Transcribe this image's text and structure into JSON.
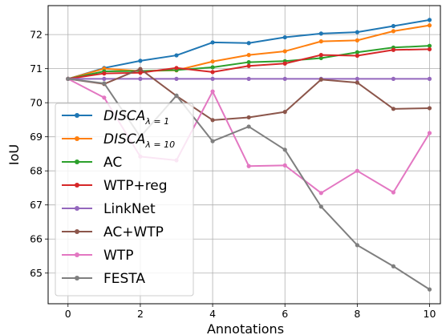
{
  "chart_data": {
    "type": "line",
    "xlabel": "Annotations",
    "ylabel": "IoU",
    "xlim": [
      -0.55,
      10.3
    ],
    "ylim": [
      64.1,
      72.85
    ],
    "xticks": [
      0,
      2,
      4,
      6,
      8,
      10
    ],
    "yticks": [
      65,
      66,
      67,
      68,
      69,
      70,
      71,
      72
    ],
    "grid": true,
    "legend_position": "center-left",
    "x": [
      0,
      1,
      2,
      3,
      4,
      5,
      6,
      7,
      8,
      9,
      10
    ],
    "series": [
      {
        "name": "DISCA",
        "subscript": "λ = 1",
        "color": "#1f77b4",
        "values": [
          70.7,
          71.02,
          71.23,
          71.39,
          71.77,
          71.75,
          71.92,
          72.03,
          72.07,
          72.25,
          72.43
        ]
      },
      {
        "name": "DISCA",
        "subscript": "λ = 10",
        "color": "#ff7f0e",
        "values": [
          70.7,
          71.0,
          70.93,
          70.95,
          71.21,
          71.4,
          71.51,
          71.8,
          71.83,
          72.1,
          72.27
        ]
      },
      {
        "name": "AC",
        "color": "#2ca02c",
        "values": [
          70.7,
          70.92,
          70.93,
          70.96,
          71.04,
          71.19,
          71.22,
          71.31,
          71.48,
          71.62,
          71.67
        ]
      },
      {
        "name": "WTP+reg",
        "color": "#d62728",
        "values": [
          70.7,
          70.86,
          70.88,
          71.02,
          70.9,
          71.08,
          71.15,
          71.4,
          71.38,
          71.55,
          71.57
        ]
      },
      {
        "name": "LinkNet",
        "color": "#9467bd",
        "values": [
          70.7,
          70.7,
          70.7,
          70.7,
          70.7,
          70.7,
          70.7,
          70.7,
          70.7,
          70.7,
          70.7
        ]
      },
      {
        "name": "AC+WTP",
        "color": "#8c564b",
        "values": [
          70.7,
          70.55,
          70.99,
          70.2,
          69.49,
          69.57,
          69.73,
          70.68,
          70.59,
          69.82,
          69.84
        ]
      },
      {
        "name": "WTP",
        "color": "#e377c2",
        "values": [
          70.7,
          70.15,
          68.42,
          68.31,
          70.33,
          68.14,
          68.16,
          67.35,
          68.0,
          67.37,
          69.11
        ]
      },
      {
        "name": "FESTA",
        "color": "#7f7f7f",
        "values": [
          70.7,
          70.57,
          69.0,
          70.21,
          68.87,
          69.3,
          68.62,
          66.95,
          65.82,
          65.2,
          64.52
        ]
      }
    ]
  }
}
